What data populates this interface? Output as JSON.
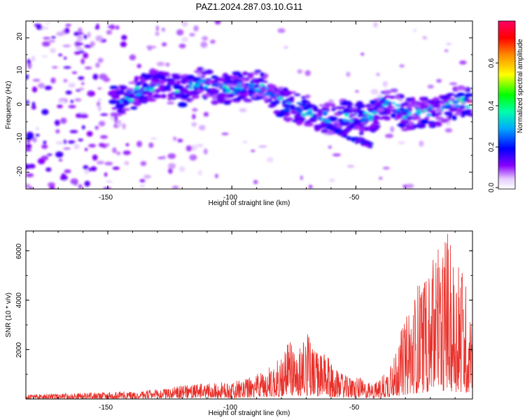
{
  "chart_data": [
    {
      "type": "heatmap",
      "title": "PAZ1.2024.287.03.10.G11",
      "xlabel": "Height of straight line (km)",
      "ylabel": "Frequency (Hz)",
      "xlim": [
        -183,
        -3
      ],
      "ylim": [
        -25,
        25
      ],
      "x_ticks": [
        "-150",
        "-100",
        "-50"
      ],
      "y_ticks": [
        "20",
        "10",
        "0",
        "-10",
        "-20"
      ],
      "colorbar": {
        "label": "Normalized spectral amplitude",
        "range": [
          0.0,
          0.8
        ],
        "ticks": [
          "0.0",
          "0.2",
          "0.4",
          "0.6"
        ],
        "colormap": [
          "#ffffff",
          "#8800ff",
          "#0000ff",
          "#00aaff",
          "#00ffaa",
          "#00ff00",
          "#ffff00",
          "#ff8800",
          "#ff0000",
          "#ff0066"
        ]
      },
      "ridge": {
        "x": [
          -145,
          -138,
          -132,
          -126,
          -120,
          -114,
          -108,
          -102,
          -96,
          -90,
          -84,
          -78,
          -72,
          -66,
          -60,
          -54,
          -48,
          -42,
          -36,
          -30,
          -24,
          -18,
          -12,
          -6
        ],
        "y": [
          1,
          4,
          6,
          5,
          4,
          7,
          5,
          5,
          5,
          6,
          3,
          0,
          -1,
          -3,
          -4,
          -3,
          -4,
          -3,
          1,
          -3,
          -2,
          -2,
          0,
          1
        ]
      }
    },
    {
      "type": "line",
      "title": "",
      "xlabel": "Height of straight line (km)",
      "ylabel": "SNR (10 * v/v)",
      "xlim": [
        -183,
        -3
      ],
      "ylim": [
        0,
        6800
      ],
      "x_ticks": [
        "-150",
        "-100",
        "-50"
      ],
      "y_ticks": [
        "2000",
        "4000",
        "6000"
      ],
      "color": "#e8302a",
      "envelope": {
        "x": [
          -183,
          -170,
          -160,
          -150,
          -140,
          -130,
          -120,
          -110,
          -100,
          -95,
          -90,
          -85,
          -80,
          -77,
          -74,
          -70,
          -66,
          -62,
          -58,
          -55,
          -52,
          -49,
          -46,
          -43,
          -40,
          -37,
          -34,
          -31,
          -28,
          -25,
          -22,
          -19,
          -16,
          -13,
          -10,
          -7,
          -5,
          -3
        ],
        "y": [
          180,
          220,
          250,
          280,
          320,
          400,
          550,
          650,
          700,
          800,
          1000,
          1300,
          1700,
          2600,
          2000,
          2800,
          2000,
          1800,
          1200,
          1000,
          850,
          900,
          700,
          600,
          900,
          1300,
          2200,
          3000,
          3800,
          4800,
          5200,
          6000,
          6400,
          6700,
          5500,
          5700,
          4300,
          3100
        ]
      }
    }
  ]
}
